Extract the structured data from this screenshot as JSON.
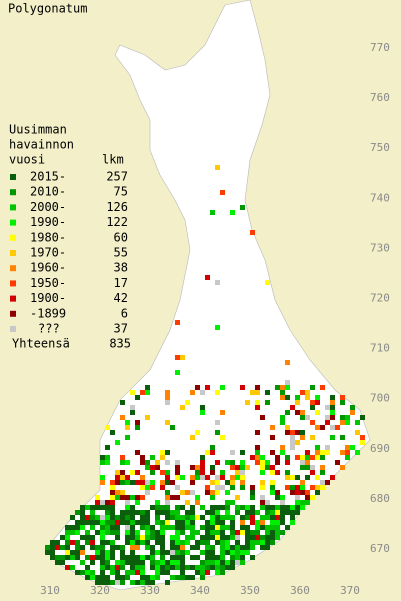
{
  "title": "Polygonatum",
  "legend": {
    "heading": [
      "Uusimman",
      "havainnon",
      "vuosi"
    ],
    "count_heading": "lkm",
    "rows": [
      {
        "label": "2015-",
        "count": 257,
        "color": "#0b5e0b"
      },
      {
        "label": "2010-",
        "count": 75,
        "color": "#009600"
      },
      {
        "label": "2000-",
        "count": 126,
        "color": "#00c400"
      },
      {
        "label": "1990-",
        "count": 122,
        "color": "#00ef00"
      },
      {
        "label": "1980-",
        "count": 60,
        "color": "#ffff00"
      },
      {
        "label": "1970-",
        "count": 55,
        "color": "#ffc800"
      },
      {
        "label": "1960-",
        "count": 38,
        "color": "#ff8200"
      },
      {
        "label": "1950-",
        "count": 17,
        "color": "#ff3c00"
      },
      {
        "label": "1900-",
        "count": 42,
        "color": "#d20000"
      },
      {
        "label": "-1899",
        "count": 6,
        "color": "#8c0000"
      },
      {
        "label": "???",
        "count": 37,
        "color": "#c8c8c8"
      }
    ],
    "total_label": "Yhteensä",
    "total": 835
  },
  "map": {
    "yticks": [
      770,
      760,
      750,
      740,
      730,
      720,
      710,
      700,
      690,
      680,
      670
    ],
    "xticks": [
      310,
      320,
      330,
      340,
      350,
      360,
      370
    ]
  }
}
